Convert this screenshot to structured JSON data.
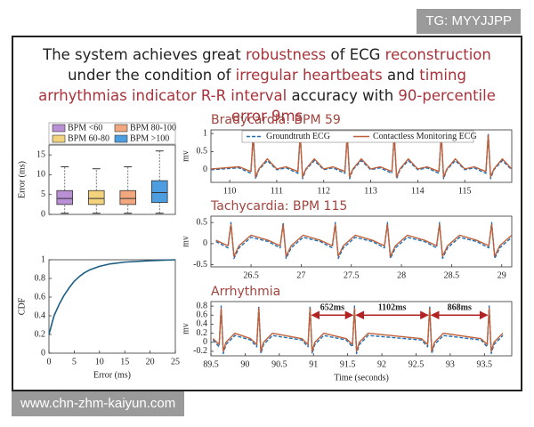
{
  "watermarks": {
    "top": "TG: MYYJJPP",
    "bottom": "www.chn-zhm-kaiyun.com"
  },
  "headline": {
    "highlight_color": "#a8333a",
    "segments": [
      {
        "text": "The system achieves great ",
        "highlight": false
      },
      {
        "text": "robustness",
        "highlight": true
      },
      {
        "text": " of ECG ",
        "highlight": false
      },
      {
        "text": "reconstruction",
        "highlight": true
      },
      {
        "text": " under the condition of ",
        "highlight": false
      },
      {
        "text": "irregular heartbeats",
        "highlight": true
      },
      {
        "text": " and ",
        "highlight": false
      },
      {
        "text": "timing arrhythmias indicator R-R interval",
        "highlight": true
      },
      {
        "text": " accuracy with ",
        "highlight": false
      },
      {
        "text": "90-percentile error 9ms",
        "highlight": true
      }
    ]
  },
  "chart_data": [
    {
      "type": "box",
      "ylabel": "Error (ms)",
      "ylim": [
        0,
        17.5
      ],
      "yticks": [
        0,
        5,
        10,
        15
      ],
      "legend": "top",
      "series": [
        {
          "name": "BPM <60",
          "color": "#b98fd6",
          "min": 0.3,
          "q1": 2.5,
          "median": 4,
          "q3": 6,
          "max": 12
        },
        {
          "name": "BPM 60-80",
          "color": "#f3d27e",
          "min": 0.3,
          "q1": 2.5,
          "median": 4,
          "q3": 6,
          "max": 11.5
        },
        {
          "name": "BPM 80-100",
          "color": "#f2a77e",
          "min": 0.3,
          "q1": 2.5,
          "median": 4,
          "q3": 6,
          "max": 12
        },
        {
          "name": "BPM >100",
          "color": "#4d9ee0",
          "min": 0.3,
          "q1": 3,
          "median": 5.5,
          "q3": 8.5,
          "max": 16
        }
      ]
    },
    {
      "type": "line",
      "xlabel": "Error (ms)",
      "ylabel": "CDF",
      "xlim": [
        0,
        25
      ],
      "ylim": [
        0,
        1
      ],
      "xticks": [
        0,
        5,
        10,
        15,
        20,
        25
      ],
      "yticks": [
        0,
        0.2,
        0.4,
        0.6,
        0.8,
        1
      ],
      "x": [
        0,
        0.5,
        1,
        2,
        3,
        4,
        5,
        6,
        7,
        8,
        10,
        12,
        15,
        20,
        25
      ],
      "series": [
        {
          "color": "#1b5e82",
          "style": "solid",
          "values": [
            0.2,
            0.3,
            0.4,
            0.52,
            0.62,
            0.7,
            0.77,
            0.82,
            0.86,
            0.89,
            0.93,
            0.955,
            0.975,
            0.99,
            1.0
          ]
        }
      ]
    },
    {
      "type": "line",
      "title": "Bradycardia: BPM 59",
      "ylabel": "mv",
      "xlim": [
        109.6,
        116
      ],
      "ylim": [
        -0.35,
        1.1
      ],
      "xticks": [
        110,
        111,
        112,
        113,
        114,
        115
      ],
      "yticks": [
        0,
        0.5,
        1
      ],
      "legend": "top",
      "x": [
        109.6,
        110.2,
        110.45,
        110.5,
        110.55,
        110.62,
        110.8,
        111.0,
        111.2,
        111.45,
        111.5,
        111.55,
        111.62,
        111.8,
        112.0,
        112.2,
        112.45,
        112.5,
        112.55,
        112.62,
        112.8,
        113.0,
        113.2,
        113.45,
        113.5,
        113.55,
        113.62,
        113.8,
        114.0,
        114.2,
        114.45,
        114.5,
        114.55,
        114.62,
        114.8,
        115.0,
        115.2,
        115.45,
        115.5,
        115.55,
        115.62,
        115.8,
        116.0
      ],
      "series": [
        {
          "name": "Groundtruth ECG",
          "color": "#1f6fb4",
          "style": "dashed",
          "values": [
            0,
            0.05,
            -0.1,
            1.0,
            -0.25,
            0,
            0.25,
            0,
            0.05,
            -0.1,
            1.0,
            -0.25,
            0,
            0.25,
            0,
            0.05,
            -0.1,
            1.0,
            -0.25,
            0,
            0.25,
            0,
            0.05,
            -0.1,
            1.0,
            -0.25,
            0,
            0.25,
            0,
            0.05,
            -0.1,
            1.0,
            -0.25,
            0,
            0.25,
            0,
            0.05,
            -0.1,
            1.0,
            -0.25,
            0,
            0.25,
            0
          ]
        },
        {
          "name": "Contactless Monitoring ECG",
          "color": "#c0603a",
          "style": "solid",
          "values": [
            0.02,
            0.08,
            -0.05,
            0.95,
            -0.2,
            0.02,
            0.3,
            0.02,
            0.08,
            -0.05,
            0.95,
            -0.2,
            0.02,
            0.3,
            0.02,
            0.08,
            -0.05,
            0.95,
            -0.2,
            0.02,
            0.3,
            0.02,
            0.08,
            -0.05,
            0.95,
            -0.2,
            0.02,
            0.3,
            0.02,
            0.08,
            -0.05,
            0.95,
            -0.2,
            0.02,
            0.3,
            0.02,
            0.08,
            -0.05,
            0.95,
            -0.2,
            0.02,
            0.3,
            0.02
          ]
        }
      ]
    },
    {
      "type": "line",
      "title": "Tachycardia: BPM 115",
      "ylabel": "mv",
      "xlim": [
        26.1,
        29.1
      ],
      "ylim": [
        -0.55,
        0.65
      ],
      "xticks": [
        26.5,
        27,
        27.5,
        28,
        28.5,
        29
      ],
      "yticks": [
        -0.5,
        0,
        0.5
      ],
      "x": [
        26.15,
        26.27,
        26.3,
        26.33,
        26.38,
        26.5,
        26.67,
        26.79,
        26.82,
        26.85,
        26.9,
        27.02,
        27.19,
        27.31,
        27.34,
        27.37,
        27.42,
        27.54,
        27.71,
        27.83,
        27.86,
        27.89,
        27.94,
        28.06,
        28.23,
        28.35,
        28.38,
        28.41,
        28.46,
        28.58,
        28.75,
        28.87,
        28.9,
        28.93,
        28.98,
        29.1
      ],
      "series": [
        {
          "color": "#1f6fb4",
          "style": "dashed",
          "values": [
            0.05,
            -0.1,
            0.5,
            -0.35,
            -0.1,
            0.15,
            0.05,
            -0.1,
            0.5,
            -0.35,
            -0.1,
            0.15,
            0.05,
            -0.1,
            0.5,
            -0.35,
            -0.1,
            0.15,
            0.05,
            -0.1,
            0.5,
            -0.35,
            -0.1,
            0.15,
            0.05,
            -0.1,
            0.5,
            -0.35,
            -0.1,
            0.15,
            0.05,
            -0.1,
            0.5,
            -0.35,
            -0.1,
            0.15
          ]
        },
        {
          "color": "#c0603a",
          "style": "solid",
          "values": [
            0.08,
            -0.05,
            0.45,
            -0.3,
            -0.05,
            0.2,
            0.08,
            -0.05,
            0.45,
            -0.3,
            -0.05,
            0.2,
            0.08,
            -0.05,
            0.45,
            -0.3,
            -0.05,
            0.2,
            0.08,
            -0.05,
            0.45,
            -0.3,
            -0.05,
            0.2,
            0.08,
            -0.05,
            0.45,
            -0.3,
            -0.05,
            0.2,
            0.08,
            -0.05,
            0.45,
            -0.3,
            -0.05,
            0.2
          ]
        }
      ]
    },
    {
      "type": "line",
      "title": "Arrhythmia",
      "ylabel": "mv",
      "xlabel": "Time (seconds)",
      "xlim": [
        89.5,
        93.9
      ],
      "ylim": [
        -0.3,
        0.9
      ],
      "xticks": [
        89.5,
        90,
        90.5,
        91,
        91.5,
        92,
        92.5,
        93,
        93.5
      ],
      "yticks": [
        -0.2,
        0,
        0.2,
        0.4,
        0.6,
        0.8
      ],
      "x": [
        89.53,
        89.62,
        89.65,
        89.68,
        89.72,
        89.85,
        90.08,
        90.17,
        90.2,
        90.23,
        90.27,
        90.4,
        90.83,
        90.92,
        90.95,
        90.98,
        91.02,
        91.15,
        91.48,
        91.57,
        91.6,
        91.63,
        91.67,
        91.8,
        92.58,
        92.67,
        92.7,
        92.73,
        92.77,
        92.9,
        93.45,
        93.54,
        93.57,
        93.6,
        93.64,
        93.77
      ],
      "series": [
        {
          "color": "#1f6fb4",
          "style": "dashed",
          "values": [
            0.05,
            -0.1,
            0.8,
            -0.25,
            -0.05,
            0.15,
            0.05,
            -0.1,
            0.8,
            -0.25,
            -0.05,
            0.15,
            0.05,
            -0.1,
            0.8,
            -0.25,
            -0.05,
            0.15,
            0.05,
            -0.1,
            0.8,
            -0.25,
            -0.05,
            0.15,
            0.05,
            -0.1,
            0.8,
            -0.25,
            -0.05,
            0.15,
            0.05,
            -0.1,
            0.8,
            -0.25,
            -0.05,
            0.15
          ]
        },
        {
          "color": "#c0603a",
          "style": "solid",
          "values": [
            0.08,
            -0.05,
            0.75,
            -0.2,
            0,
            0.2,
            0.08,
            -0.05,
            0.75,
            -0.2,
            0,
            0.2,
            0.08,
            -0.05,
            0.75,
            -0.2,
            0,
            0.2,
            0.08,
            -0.05,
            0.75,
            -0.2,
            0,
            0.2,
            0.08,
            -0.05,
            0.75,
            -0.2,
            0,
            0.2,
            0.08,
            -0.05,
            0.75,
            -0.2,
            0,
            0.2
          ]
        }
      ],
      "annotation_color": "#b22222",
      "annotations": [
        {
          "text": "652ms",
          "from": 90.95,
          "to": 91.6,
          "y": 0.6
        },
        {
          "text": "1102ms",
          "from": 91.6,
          "to": 92.7,
          "y": 0.6
        },
        {
          "text": "868ms",
          "from": 92.7,
          "to": 93.57,
          "y": 0.6
        }
      ]
    }
  ]
}
